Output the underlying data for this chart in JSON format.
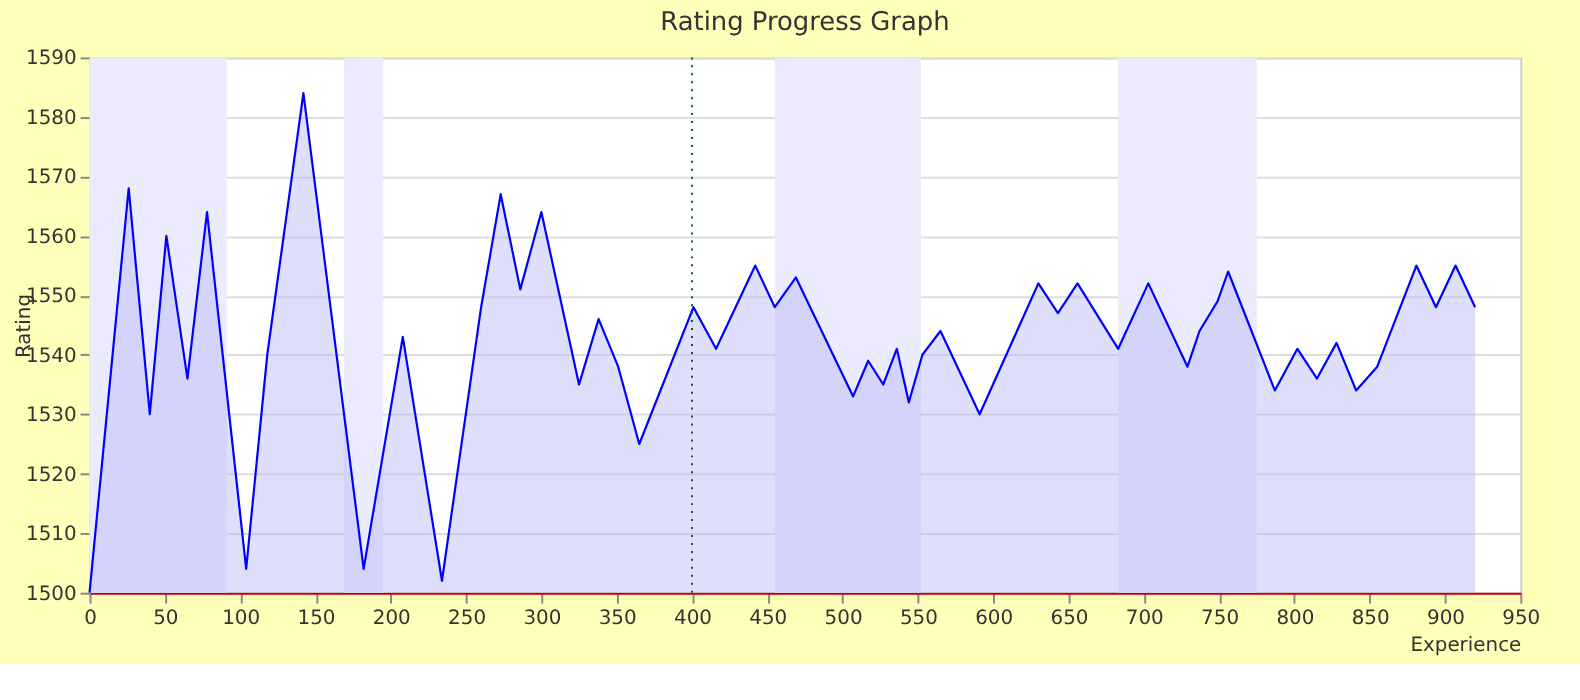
{
  "chart_data": {
    "type": "area",
    "title": "Rating Progress Graph",
    "xlabel": "Experience",
    "ylabel": "Rating",
    "x": [
      0,
      26,
      40,
      51,
      65,
      78,
      104,
      118,
      142,
      182,
      208,
      234,
      260,
      273,
      286,
      300,
      325,
      338,
      351,
      365,
      401,
      416,
      442,
      455,
      469,
      507,
      517,
      527,
      536,
      544,
      553,
      565,
      591,
      630,
      643,
      656,
      683,
      703,
      729,
      737,
      749,
      756,
      787,
      802,
      815,
      828,
      841,
      855,
      881,
      894,
      907,
      920
    ],
    "series": [
      {
        "color": "#0000ff",
        "values": [
          1500,
          1568,
          1530,
          1560,
          1536,
          1564,
          1504,
          1540,
          1584,
          1504,
          1543,
          1502,
          1548,
          1567,
          1551,
          1564,
          1535,
          1546,
          1538,
          1525,
          1548,
          1541,
          1555,
          1548,
          1553,
          1533,
          1539,
          1535,
          1541,
          1532,
          1540,
          1544,
          1530,
          1552,
          1547,
          1552,
          1541,
          1552,
          1538,
          1544,
          1549,
          1554,
          1534,
          1541,
          1536,
          1542,
          1534,
          1538,
          1555,
          1548,
          1555,
          1548
        ]
      }
    ],
    "xlim": [
      0,
      950
    ],
    "xticks": [
      0,
      50,
      100,
      150,
      200,
      250,
      300,
      350,
      400,
      450,
      500,
      550,
      600,
      650,
      700,
      750,
      800,
      850,
      900,
      950
    ],
    "ylim": [
      1500,
      1590
    ],
    "yticks": [
      1500,
      1510,
      1520,
      1530,
      1540,
      1550,
      1560,
      1570,
      1580,
      1590
    ],
    "ref_lines": [
      {
        "axis": "x",
        "value": 400,
        "color": "#006400",
        "line_style": "dotted"
      }
    ],
    "bands": [
      {
        "axis": "x",
        "from": 0,
        "to": 91,
        "color": "#ebebfd"
      },
      {
        "axis": "x",
        "from": 169,
        "to": 195,
        "color": "#ebebfd"
      },
      {
        "axis": "x",
        "from": 455,
        "to": 552,
        "color": "#ebebfd"
      },
      {
        "axis": "x",
        "from": 683,
        "to": 775,
        "color": "#ebebfd"
      }
    ],
    "grid": "y"
  }
}
